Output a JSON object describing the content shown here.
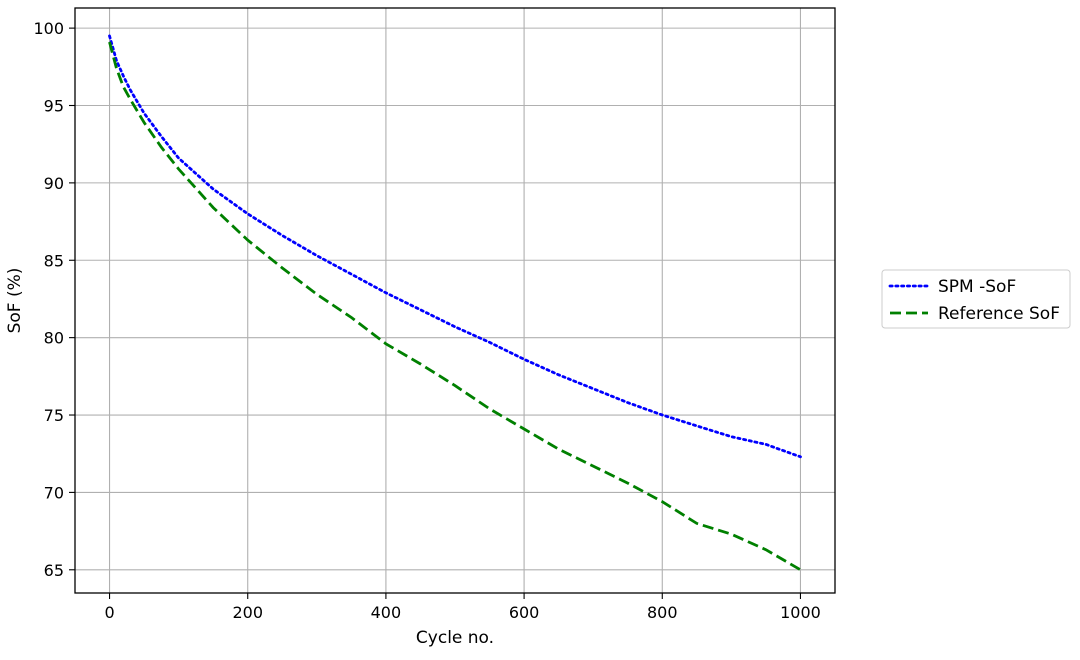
{
  "chart_data": {
    "type": "line",
    "title": "",
    "xlabel": "Cycle no.",
    "ylabel": "SoF (%)",
    "xlim": [
      -50,
      1050
    ],
    "ylim": [
      63.5,
      101.3
    ],
    "xticks": [
      0,
      200,
      400,
      600,
      800,
      1000
    ],
    "yticks": [
      65,
      70,
      75,
      80,
      85,
      90,
      95,
      100
    ],
    "grid": true,
    "legend_position": "outside-right",
    "series": [
      {
        "name": "SPM -SoF",
        "color": "#0000ff",
        "style": "dotted",
        "x": [
          0,
          10,
          20,
          30,
          50,
          75,
          100,
          150,
          200,
          250,
          300,
          350,
          400,
          450,
          500,
          550,
          600,
          650,
          700,
          750,
          800,
          850,
          900,
          950,
          1000
        ],
        "y": [
          99.5,
          97.9,
          96.9,
          96.0,
          94.5,
          93.0,
          91.6,
          89.6,
          88.0,
          86.6,
          85.3,
          84.1,
          82.9,
          81.8,
          80.7,
          79.7,
          78.6,
          77.6,
          76.7,
          75.8,
          75.0,
          74.3,
          73.6,
          73.1,
          72.3
        ]
      },
      {
        "name": "Reference SoF",
        "color": "#008000",
        "style": "dashed",
        "x": [
          0,
          10,
          20,
          30,
          50,
          75,
          100,
          150,
          200,
          250,
          300,
          350,
          400,
          450,
          500,
          550,
          600,
          650,
          700,
          750,
          800,
          850,
          900,
          950,
          1000
        ],
        "y": [
          99.1,
          97.4,
          96.2,
          95.4,
          93.9,
          92.3,
          90.9,
          88.4,
          86.3,
          84.5,
          82.8,
          81.3,
          79.6,
          78.3,
          76.9,
          75.4,
          74.1,
          72.8,
          71.7,
          70.6,
          69.4,
          68.0,
          67.3,
          66.3,
          65.0
        ]
      }
    ]
  }
}
